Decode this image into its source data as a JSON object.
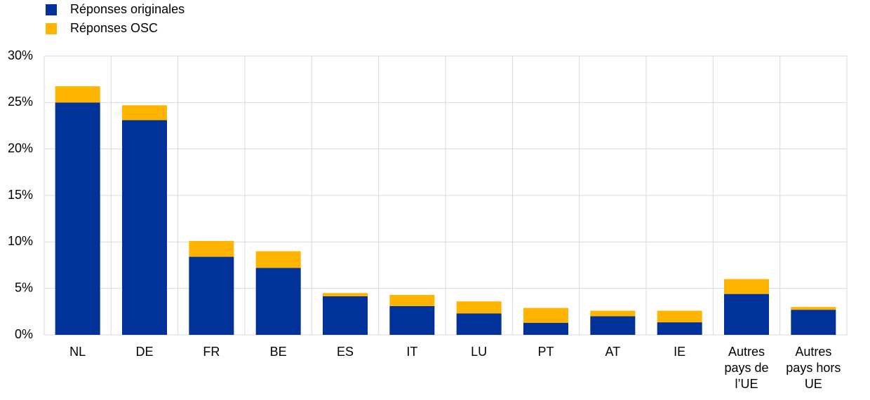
{
  "chart_data": {
    "type": "bar",
    "stacked": true,
    "categories": [
      "NL",
      "DE",
      "FR",
      "BE",
      "ES",
      "IT",
      "LU",
      "PT",
      "AT",
      "IE",
      "Autres pays de l’UE",
      "Autres pays hors UE"
    ],
    "series": [
      {
        "name": "Réponses originales",
        "color": "#003299",
        "values": [
          25.0,
          23.1,
          8.4,
          7.2,
          4.15,
          3.1,
          2.3,
          1.3,
          2.0,
          1.35,
          4.4,
          2.7
        ]
      },
      {
        "name": "Réponses OSC",
        "color": "#ffb400",
        "values": [
          1.75,
          1.6,
          1.7,
          1.8,
          0.35,
          1.2,
          1.3,
          1.6,
          0.6,
          1.25,
          1.6,
          0.3
        ]
      }
    ],
    "ylim": [
      0,
      30
    ],
    "yticks": [
      {
        "value": 0,
        "label": "0%"
      },
      {
        "value": 5,
        "label": "5%"
      },
      {
        "value": 10,
        "label": "10%"
      },
      {
        "value": 15,
        "label": "15%"
      },
      {
        "value": 20,
        "label": "20%"
      },
      {
        "value": 25,
        "label": "25%"
      },
      {
        "value": 30,
        "label": "30%"
      }
    ],
    "grid": true
  }
}
